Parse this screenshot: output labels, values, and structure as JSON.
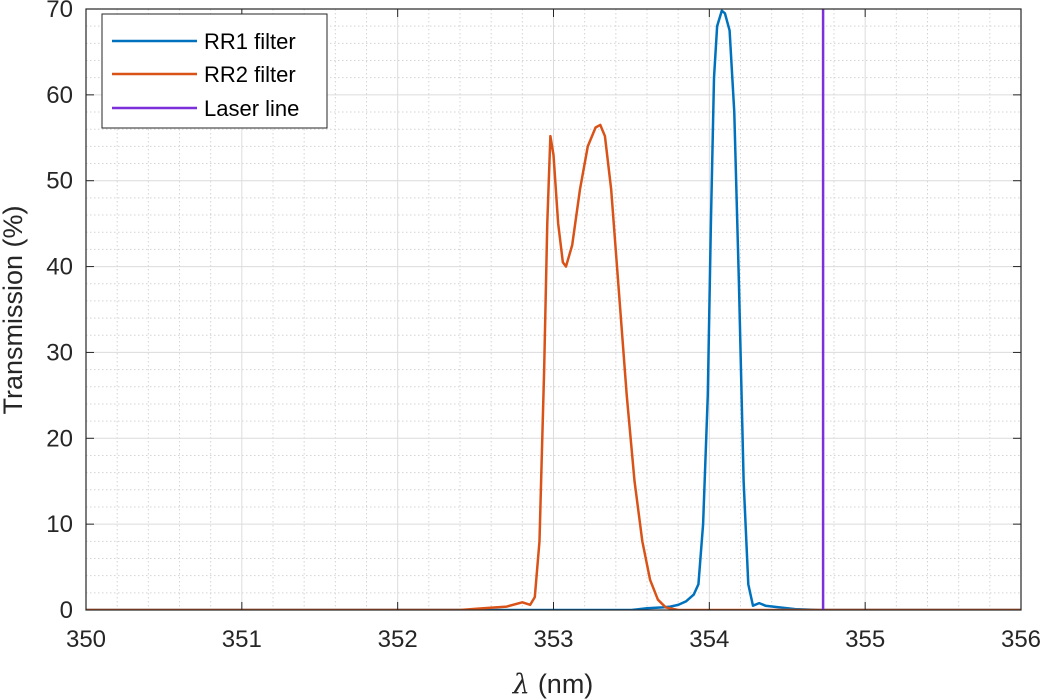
{
  "chart_data": {
    "type": "line",
    "title": "",
    "xlabel_symbol": "λ",
    "xlabel_unit": "(nm)",
    "ylabel": "Transmission (%)",
    "xlim": [
      350,
      356
    ],
    "ylim": [
      0,
      70
    ],
    "xticks": [
      350,
      351,
      352,
      353,
      354,
      355,
      356
    ],
    "yticks": [
      0,
      10,
      20,
      30,
      40,
      50,
      60,
      70
    ],
    "grid": true,
    "minor_grid": true,
    "legend_position": "top-left",
    "series": [
      {
        "name": "RR1 filter",
        "color": "#0072BD",
        "points": [
          [
            350.0,
            0
          ],
          [
            353.5,
            0
          ],
          [
            353.6,
            0.2
          ],
          [
            353.7,
            0.3
          ],
          [
            353.75,
            0.4
          ],
          [
            353.8,
            0.6
          ],
          [
            353.85,
            1.0
          ],
          [
            353.9,
            1.8
          ],
          [
            353.93,
            3.0
          ],
          [
            353.96,
            10
          ],
          [
            353.99,
            25
          ],
          [
            354.01,
            45
          ],
          [
            354.03,
            62
          ],
          [
            354.05,
            68
          ],
          [
            354.08,
            69.8
          ],
          [
            354.1,
            69.5
          ],
          [
            354.13,
            67.5
          ],
          [
            354.16,
            58
          ],
          [
            354.19,
            38
          ],
          [
            354.22,
            15
          ],
          [
            354.25,
            3
          ],
          [
            354.28,
            0.5
          ],
          [
            354.32,
            0.8
          ],
          [
            354.36,
            0.5
          ],
          [
            354.45,
            0.3
          ],
          [
            354.55,
            0.1
          ],
          [
            354.7,
            0
          ],
          [
            356.0,
            0
          ]
        ]
      },
      {
        "name": "RR2 filter",
        "color": "#D95319",
        "points": [
          [
            350.0,
            0
          ],
          [
            352.4,
            0
          ],
          [
            352.55,
            0.2
          ],
          [
            352.7,
            0.4
          ],
          [
            352.8,
            0.9
          ],
          [
            352.85,
            0.6
          ],
          [
            352.88,
            1.5
          ],
          [
            352.91,
            8
          ],
          [
            352.94,
            28
          ],
          [
            352.96,
            45
          ],
          [
            352.98,
            55.2
          ],
          [
            353.0,
            53
          ],
          [
            353.03,
            45
          ],
          [
            353.06,
            40.5
          ],
          [
            353.08,
            40
          ],
          [
            353.12,
            42.5
          ],
          [
            353.17,
            49
          ],
          [
            353.22,
            54
          ],
          [
            353.27,
            56.2
          ],
          [
            353.3,
            56.5
          ],
          [
            353.33,
            55.2
          ],
          [
            353.37,
            49
          ],
          [
            353.42,
            37
          ],
          [
            353.47,
            25
          ],
          [
            353.52,
            15
          ],
          [
            353.57,
            8
          ],
          [
            353.62,
            3.5
          ],
          [
            353.67,
            1.2
          ],
          [
            353.72,
            0.3
          ],
          [
            353.8,
            0
          ],
          [
            356.0,
            0
          ]
        ]
      },
      {
        "name": "Laser line",
        "color": "#7E2FDC",
        "points": [
          [
            354.73,
            0
          ],
          [
            354.73,
            70
          ]
        ]
      }
    ]
  }
}
